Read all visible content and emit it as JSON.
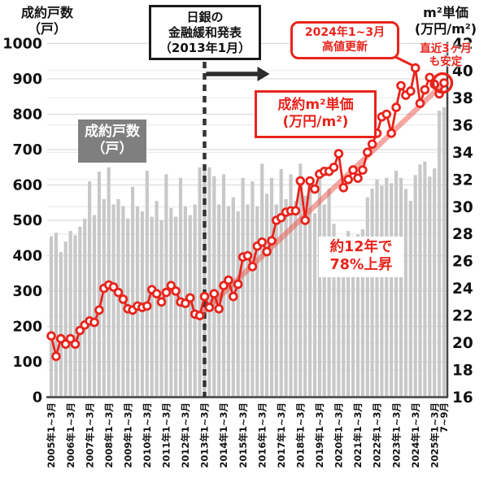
{
  "colors": {
    "red": "#e8241c",
    "trend_pink": "rgba(235,80,70,0.5)",
    "bar_gray": "#c8c8c8",
    "grid_left": "#dcdcdc",
    "grid_right": "#ececec",
    "axis_dark": "#444444",
    "event_dash": "#333333",
    "arrow_black": "#2b2b2b",
    "box_gray_bg": "#7f7f7f"
  },
  "chart_data": {
    "type": "bar+line combo (dual axis)",
    "left_axis_title": {
      "line1": "成約戸数",
      "line2": "（戸）"
    },
    "right_axis_title": {
      "line1": "m²単価",
      "line2": "(万円/m²)"
    },
    "left_axis": {
      "min": 0,
      "max": 1000,
      "step": 100,
      "ticks": [
        0,
        100,
        200,
        300,
        400,
        500,
        600,
        700,
        800,
        900,
        1000
      ]
    },
    "right_axis": {
      "min": 16,
      "max": 42,
      "step": 2,
      "ticks": [
        16,
        18,
        20,
        22,
        24,
        26,
        28,
        30,
        32,
        34,
        36,
        38,
        40,
        42
      ]
    },
    "x_tick_labels": [
      "2005年1~3月",
      "2006年1~3月",
      "2007年1~3月",
      "2008年1~3月",
      "2009年1~3月",
      "2010年1~3月",
      "2011年1~3月",
      "2012年1~3月",
      "2013年1~3月",
      "2014年1~3月",
      "2015年1~3月",
      "2016年1~3月",
      "2017年1~3月",
      "2018年1~3月",
      "2019年1~3月",
      "2020年1~3月",
      "2021年1~3月",
      "2022年1~3月",
      "2023年1~3月",
      "2024年1~3月",
      "2025年1~3月"
    ],
    "x_tick_final": "7~9月",
    "quarters_per_year_label": 4,
    "bars": {
      "name": "成約戸数（戸）",
      "axis": "left",
      "values": [
        455,
        465,
        410,
        440,
        470,
        458,
        482,
        505,
        610,
        515,
        638,
        560,
        650,
        545,
        560,
        540,
        505,
        595,
        540,
        525,
        640,
        510,
        555,
        500,
        630,
        535,
        510,
        620,
        540,
        515,
        545,
        650,
        640,
        650,
        625,
        545,
        630,
        540,
        565,
        525,
        620,
        545,
        610,
        540,
        660,
        575,
        620,
        545,
        645,
        560,
        630,
        555,
        660,
        570,
        610,
        520,
        640,
        545,
        590,
        490,
        450,
        430,
        470,
        455,
        460,
        475,
        565,
        590,
        616,
        598,
        620,
        605,
        640,
        620,
        589,
        555,
        628,
        658,
        666,
        624,
        647,
        810,
        820
      ]
    },
    "line": {
      "name": "成約m²単価(万円/m²)",
      "axis": "right",
      "values": [
        20.5,
        19.0,
        20.3,
        19.9,
        20.3,
        19.9,
        20.9,
        21.3,
        21.6,
        21.5,
        22.4,
        24.0,
        24.25,
        24.1,
        23.7,
        23.2,
        22.5,
        22.4,
        22.7,
        22.6,
        22.7,
        23.9,
        23.6,
        23.0,
        23.7,
        24.2,
        23.8,
        23.0,
        22.9,
        23.3,
        22.1,
        22.0,
        23.4,
        22.6,
        23.6,
        22.5,
        24.2,
        24.6,
        23.4,
        24.3,
        26.3,
        26.4,
        25.6,
        27.1,
        27.4,
        26.7,
        27.5,
        29.0,
        29.2,
        29.6,
        29.7,
        29.7,
        31.9,
        29.0,
        31.9,
        31.3,
        32.4,
        32.6,
        32.6,
        32.9,
        33.9,
        31.4,
        32.0,
        32.7,
        32.1,
        32.7,
        34.0,
        34.6,
        35.4,
        36.6,
        36.8,
        35.4,
        37.3,
        38.9,
        38.2,
        38.5,
        40.2,
        37.6,
        38.6,
        39.5,
        39.0,
        38.3,
        39.1
      ]
    },
    "trend": {
      "from_index": 31,
      "to_index": 82
    },
    "event_line_index": 32,
    "record_high_index": 76,
    "highlight_last_index": 82,
    "grid": "on",
    "legend_position": "in-plot labeled boxes"
  },
  "annotations": {
    "boj": {
      "line1": "日銀の",
      "line2": "金融緩和発表",
      "line3": "（2013年1月）"
    },
    "record_high": {
      "line1": "2024年1~3月",
      "line2": "高値更新"
    },
    "recent_stable": {
      "line1": "直近3ヶ月",
      "line2": "も安定"
    },
    "price_series_label": {
      "line1": "成約m²単価",
      "line2": "(万円/m²)"
    },
    "units_series_label": {
      "line1": "成約戸数",
      "line2": "（戸）"
    },
    "rise": {
      "line1": "約12年で",
      "line2": "78%上昇"
    }
  }
}
